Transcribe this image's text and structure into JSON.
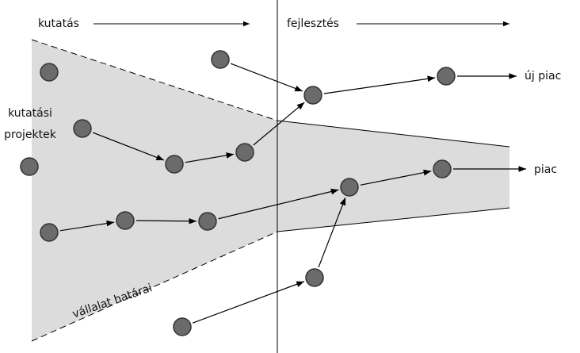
{
  "header": {
    "left": "kutatás",
    "right": "fejlesztés"
  },
  "labels": {
    "projects_line1": "kutatási",
    "projects_line2": "projektek",
    "new_market": "új piac",
    "market": "piac",
    "boundary": "vállalat határai"
  }
}
